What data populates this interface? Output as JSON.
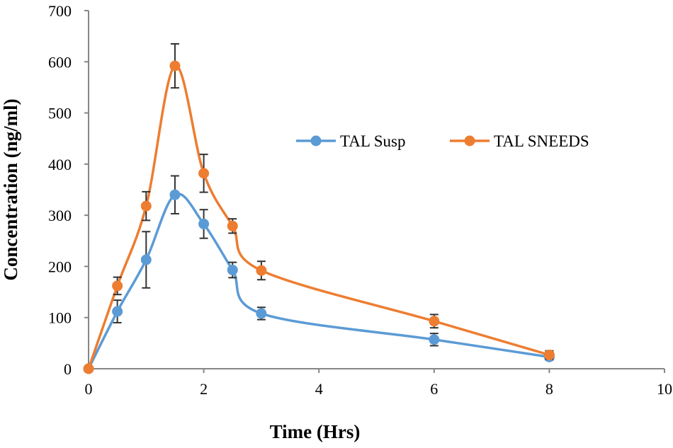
{
  "chart_data": {
    "type": "line",
    "title": "",
    "xlabel": "Time (Hrs)",
    "ylabel": "Concentration (ng/ml)",
    "xlim": [
      0,
      10
    ],
    "ylim": [
      0,
      700
    ],
    "xticks": [
      0,
      2,
      4,
      6,
      8,
      10
    ],
    "yticks": [
      0,
      100,
      200,
      300,
      400,
      500,
      600,
      700
    ],
    "grid": false,
    "legend_position": "top-right",
    "x": [
      0,
      0.5,
      1,
      1.5,
      2,
      2.5,
      3,
      6,
      8
    ],
    "series": [
      {
        "name": "TAL Susp",
        "color": "#5b9bd5",
        "values": [
          0,
          112,
          213,
          340,
          283,
          193,
          108,
          57,
          23
        ],
        "errors": [
          0,
          22,
          55,
          37,
          28,
          15,
          12,
          12,
          6
        ]
      },
      {
        "name": "TAL SNEEDS",
        "color": "#ed7d31",
        "values": [
          0,
          162,
          318,
          592,
          382,
          279,
          192,
          93,
          27
        ],
        "errors": [
          0,
          17,
          28,
          43,
          37,
          14,
          18,
          13,
          8
        ]
      }
    ]
  }
}
